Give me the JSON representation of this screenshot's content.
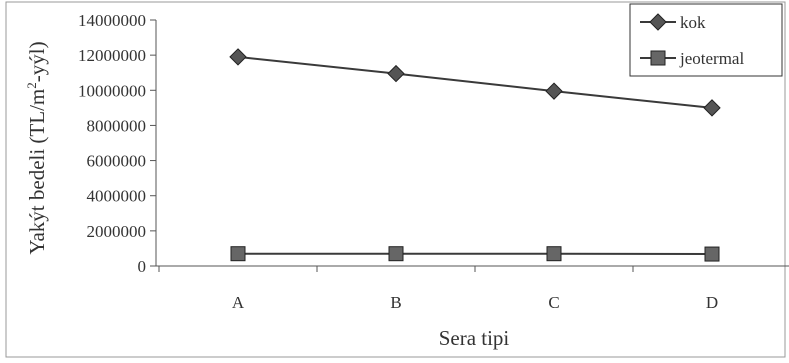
{
  "chart_data": {
    "type": "line",
    "categories": [
      "A",
      "B",
      "C",
      "D"
    ],
    "series": [
      {
        "name": "kok",
        "values": [
          11900000,
          10950000,
          9950000,
          9000000
        ],
        "marker": "diamond",
        "color": "#3a3a3a"
      },
      {
        "name": "jeotermal",
        "values": [
          700000,
          700000,
          700000,
          680000
        ],
        "marker": "square",
        "color": "#3a3a3a"
      }
    ],
    "xlabel": "Sera tipi",
    "ylabel_main": "Yakýt bedeli (TL/m",
    "ylabel_sup": "2",
    "ylabel_tail": "-yýl)",
    "ylim": [
      0,
      14000000
    ],
    "yticks": [
      0,
      2000000,
      4000000,
      6000000,
      8000000,
      10000000,
      12000000,
      14000000
    ],
    "grid": false,
    "legend_position": "top-right"
  }
}
